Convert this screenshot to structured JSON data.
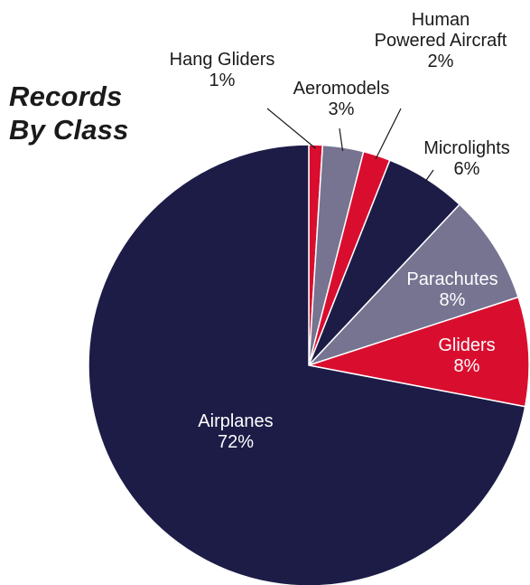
{
  "chart_data": {
    "type": "pie",
    "title_lines": [
      "Records",
      "By Class"
    ],
    "start_angle_deg": 0,
    "direction": "clockwise",
    "slices": [
      {
        "label": "Hang Gliders",
        "label_lines": [
          "Hang Gliders"
        ],
        "value": 1,
        "pct_label": "1%",
        "color": "#d90e2f",
        "label_color": "#1a1a1a",
        "label_placement": "outside"
      },
      {
        "label": "Aeromodels",
        "label_lines": [
          "Aeromodels"
        ],
        "value": 3,
        "pct_label": "3%",
        "color": "#767491",
        "label_color": "#1a1a1a",
        "label_placement": "outside"
      },
      {
        "label": "Human Powered Aircraft",
        "label_lines": [
          "Human",
          "Powered Aircraft"
        ],
        "value": 2,
        "pct_label": "2%",
        "color": "#d90e2f",
        "label_color": "#1a1a1a",
        "label_placement": "outside"
      },
      {
        "label": "Microlights",
        "label_lines": [
          "Microlights"
        ],
        "value": 6,
        "pct_label": "6%",
        "color": "#1c1c47",
        "label_color": "#1a1a1a",
        "label_placement": "outside"
      },
      {
        "label": "Parachutes",
        "label_lines": [
          "Parachutes"
        ],
        "value": 8,
        "pct_label": "8%",
        "color": "#767491",
        "label_color": "#ffffff",
        "label_placement": "inside"
      },
      {
        "label": "Gliders",
        "label_lines": [
          "Gliders"
        ],
        "value": 8,
        "pct_label": "8%",
        "color": "#d90e2f",
        "label_color": "#ffffff",
        "label_placement": "inside"
      },
      {
        "label": "Airplanes",
        "label_lines": [
          "Airplanes"
        ],
        "value": 72,
        "pct_label": "72%",
        "color": "#1c1c47",
        "label_color": "#ffffff",
        "label_placement": "inside"
      }
    ]
  }
}
